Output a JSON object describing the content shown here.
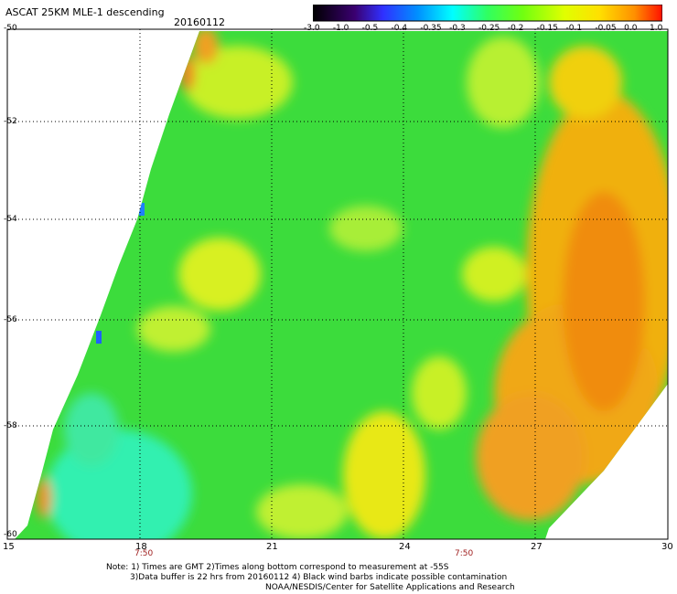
{
  "header": {
    "title": "ASCAT 25KM MLE-1 descending",
    "date": "20160112"
  },
  "colorbar": {
    "labels": [
      "-3.0",
      "-1.0",
      "-0.5",
      "-0.4",
      "-0.35",
      "-0.3",
      "-0.25",
      "-0.2",
      "-0.15",
      "-0.1",
      "-0.05",
      "0.0",
      "1.0"
    ],
    "colors": [
      "#1a0033",
      "#4b0082",
      "#2020ff",
      "#0080ff",
      "#00b0ff",
      "#00ffff",
      "#40ff80",
      "#40ff40",
      "#80ff00",
      "#d0ff00",
      "#ffff00",
      "#ffa500",
      "#ff2000"
    ]
  },
  "axes": {
    "lat_labels": [
      "-50",
      "-52",
      "-54",
      "-56",
      "-58",
      "-60"
    ],
    "lon_labels": [
      "15",
      "18",
      "21",
      "24",
      "27",
      "30"
    ],
    "time_labels": [
      "7:50",
      "7:50"
    ]
  },
  "notes": {
    "line1": "Note: 1) Times are GMT 2)Times along bottom correspond to measurement at -55S",
    "line2": "3)Data buffer is 22 hrs from 20160112 4) Black wind barbs indicate possible contamination",
    "line3": "NOAA/NESDIS/Center for Satellite Applications and Research"
  }
}
